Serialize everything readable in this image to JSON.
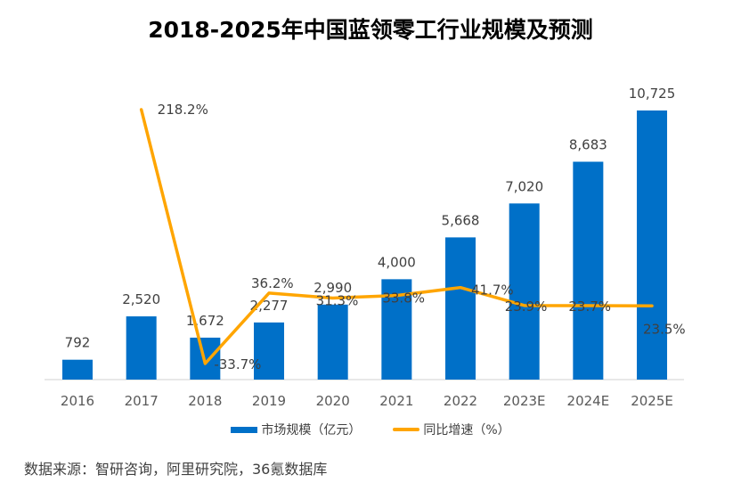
{
  "title": "2018-2025年中国蓝领零工行业规模及预测",
  "source": "数据来源：智研咨询，阿里研究院，36氪数据库",
  "colors": {
    "bar": "#0070C8",
    "line": "#FFA500",
    "axis": "#D9D9D9",
    "text": "#404040"
  },
  "chart_data": {
    "type": "bar+line",
    "title": "2018-2025年中国蓝领零工行业规模及预测",
    "categories": [
      "2016",
      "2017",
      "2018",
      "2019",
      "2020",
      "2021",
      "2022",
      "2023E",
      "2024E",
      "2025E"
    ],
    "series": [
      {
        "name": "市场规模（亿元）",
        "type": "bar",
        "axis": "primary",
        "values": [
          792,
          2520,
          1672,
          2277,
          2990,
          4000,
          5668,
          7020,
          8683,
          10725
        ],
        "labels": [
          "792",
          "2,520",
          "1,672",
          "2,277",
          "2,990",
          "4,000",
          "5,668",
          "7,020",
          "8,683",
          "10,725"
        ]
      },
      {
        "name": "同比增速（%）",
        "type": "line",
        "axis": "secondary",
        "values": [
          null,
          218.2,
          -33.7,
          36.2,
          31.3,
          33.8,
          41.7,
          23.9,
          23.7,
          23.5
        ],
        "labels": [
          null,
          "218.2%",
          "-33.7%",
          "36.2%",
          "31.3%",
          "33.8%",
          "41.7%",
          "23.9%",
          "23.7%",
          "23.5%"
        ]
      }
    ],
    "xlabel": "",
    "ylabel": "",
    "ylim": [
      0,
      10725
    ],
    "y2lim": [
      -33.7,
      218.2
    ],
    "grid": false,
    "legend": "bottom"
  },
  "legend": {
    "items": [
      {
        "label": "市场规模（亿元）",
        "kind": "bar"
      },
      {
        "label": "同比增速（%）",
        "kind": "line"
      }
    ]
  }
}
